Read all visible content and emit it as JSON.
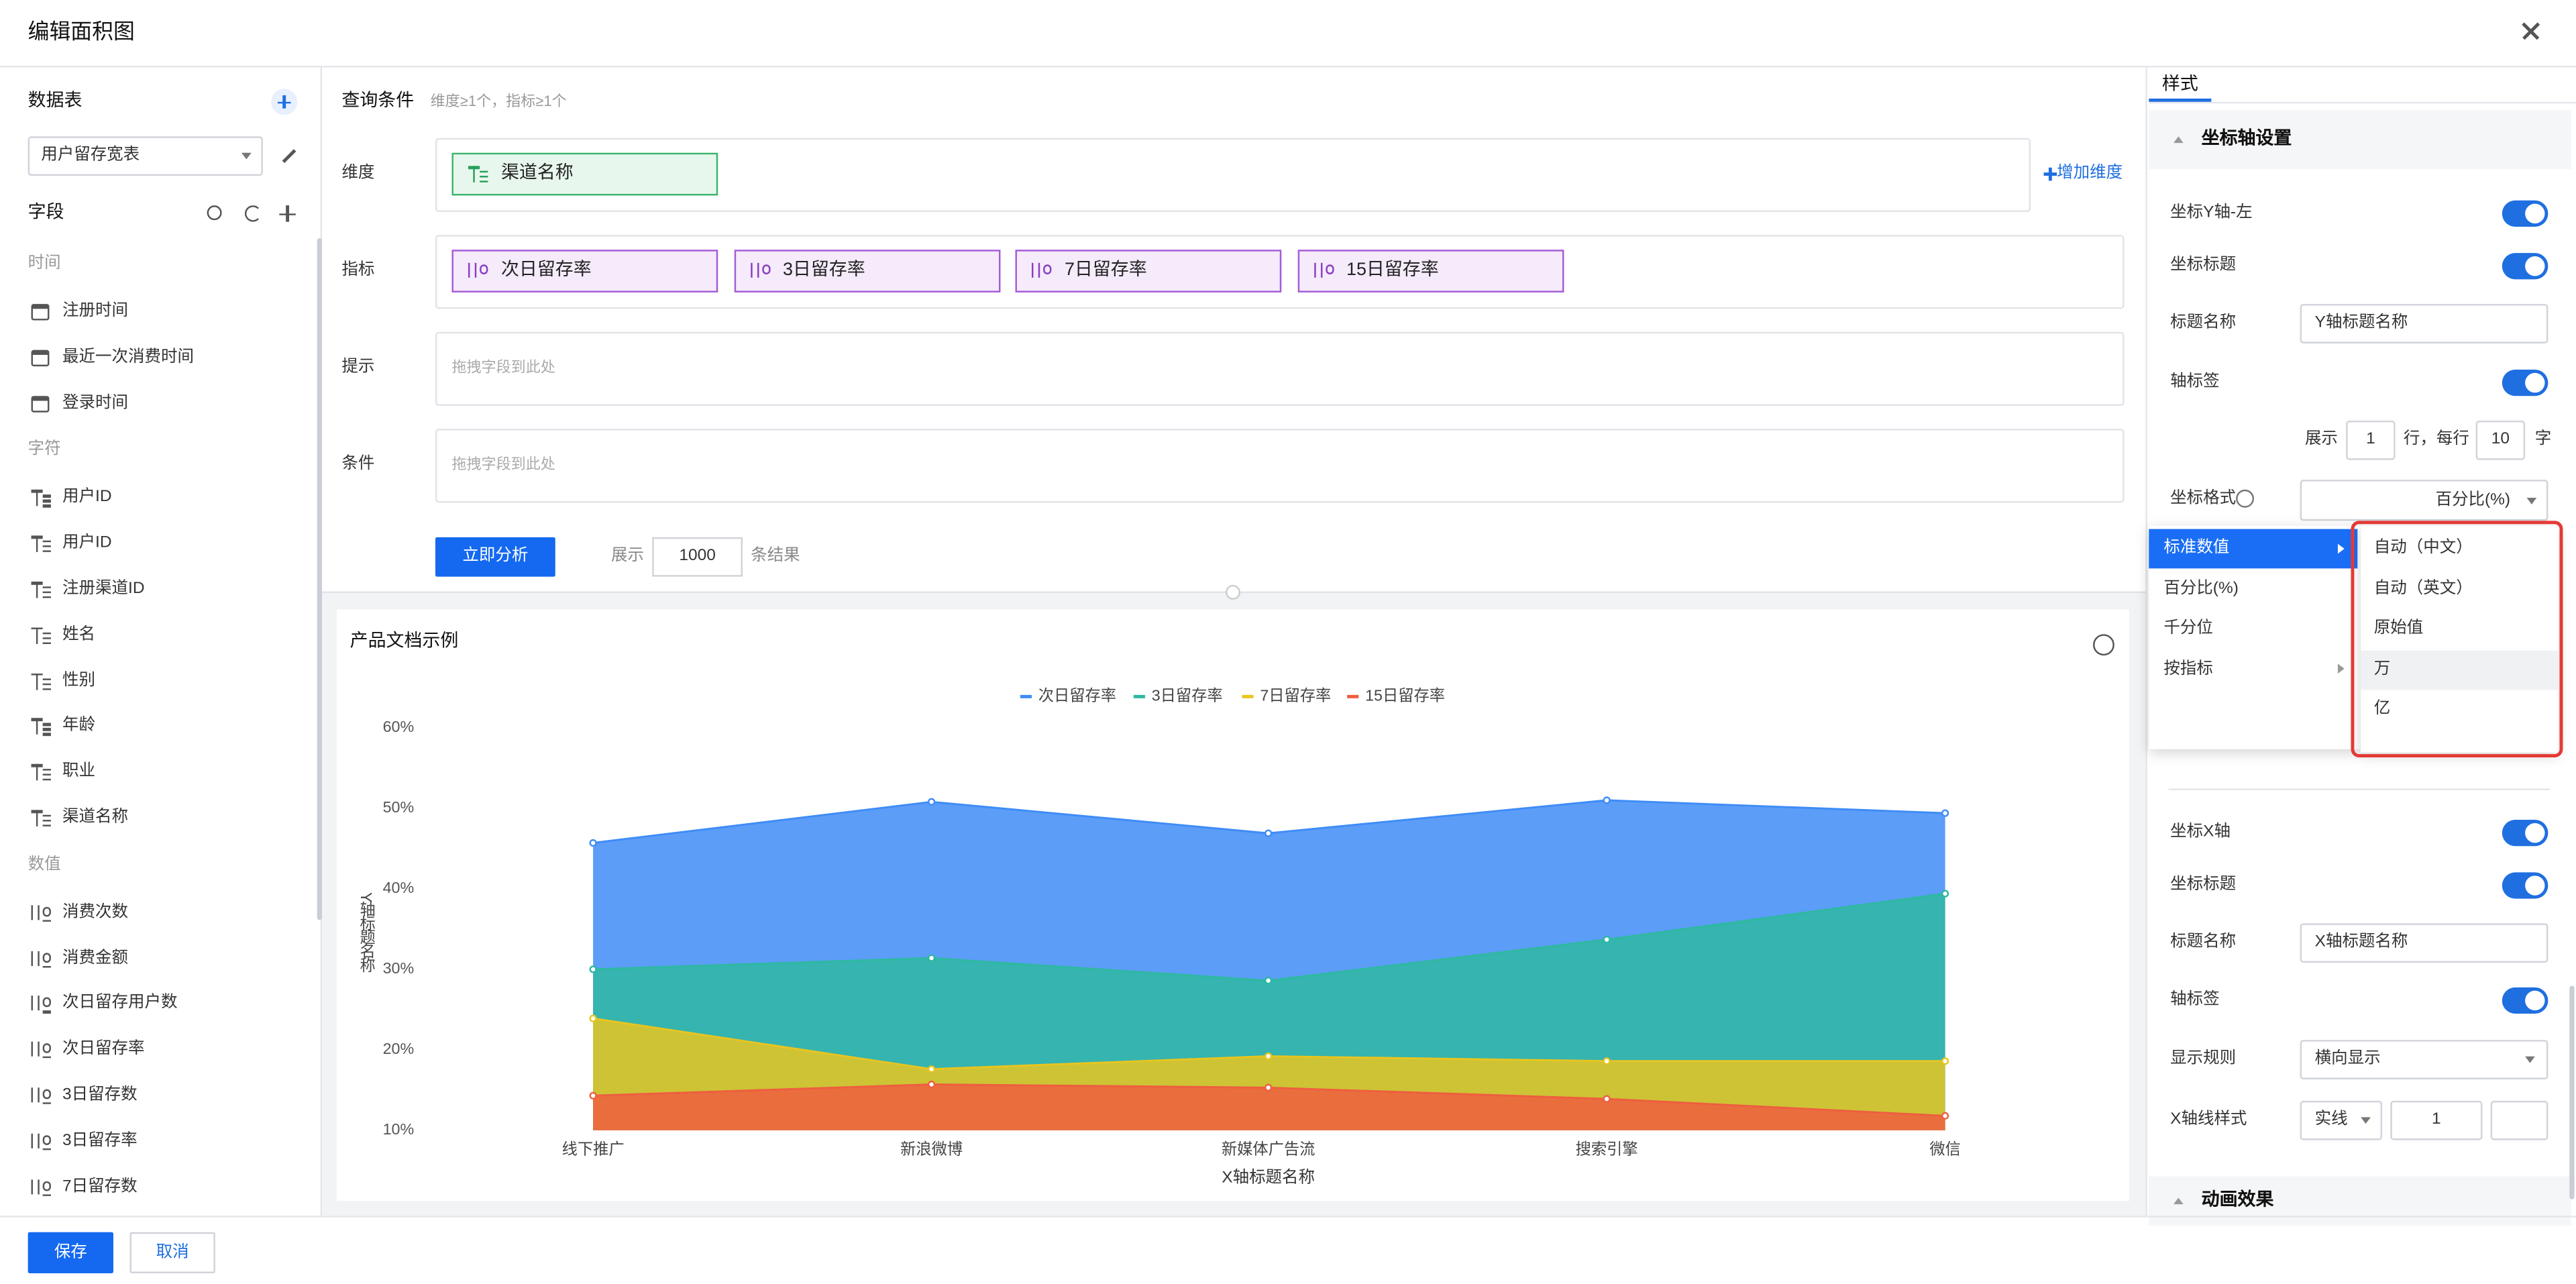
{
  "dialog": {
    "title": "编辑面积图"
  },
  "left_panel": {
    "datatable_label": "数据表",
    "datatable_value": "用户留存宽表",
    "fields_label": "字段",
    "groups": [
      {
        "name": "时间",
        "kind": "time",
        "items": [
          "注册时间",
          "最近一次消费时间",
          "登录时间"
        ]
      },
      {
        "name": "字符",
        "kind": "text",
        "items": [
          "用户ID",
          "用户ID",
          "注册渠道ID",
          "姓名",
          "性别",
          "年龄",
          "职业",
          "渠道名称"
        ]
      },
      {
        "name": "数值",
        "kind": "number",
        "items": [
          "消费次数",
          "消费金额",
          "次日留存用户数",
          "次日留存率",
          "3日留存数",
          "3日留存率",
          "7日留存数"
        ]
      }
    ]
  },
  "query": {
    "title": "查询条件",
    "hint": "维度≥1个，指标≥1个",
    "rows": [
      {
        "label": "维度",
        "chips": [
          "渠道名称"
        ],
        "action": "增加维度"
      },
      {
        "label": "指标",
        "chips": [
          "次日留存率",
          "3日留存率",
          "7日留存率",
          "15日留存率"
        ]
      },
      {
        "label": "提示",
        "placeholder": "拖拽字段到此处"
      },
      {
        "label": "条件",
        "placeholder": "拖拽字段到此处"
      }
    ],
    "analyze_button": "立即分析",
    "show_label": "展示",
    "show_count": "1000",
    "result_label": "条结果"
  },
  "chart": {
    "type": "area",
    "title": "产品文档示例",
    "y_title": "Y轴标题名称",
    "x_title": "X轴标题名称",
    "categories": [
      "线下推广",
      "新浪微博",
      "新媒体广告流",
      "搜索引擎",
      "微信"
    ],
    "series": [
      {
        "name": "次日留存率",
        "color": "#3f8cf7",
        "values": [
          45.7,
          50.8,
          46.9,
          51,
          49.4
        ]
      },
      {
        "name": "3日留存率",
        "color": "#2fb8a2",
        "values": [
          30,
          31.4,
          28.6,
          33.7,
          39.4
        ]
      },
      {
        "name": "7日留存率",
        "color": "#e8c520",
        "values": [
          23.9,
          17.6,
          19.2,
          18.6,
          18.6
        ]
      },
      {
        "name": "15日留存率",
        "color": "#ee5e3f",
        "values": [
          14.3,
          15.7,
          15.3,
          13.9,
          11.8
        ]
      }
    ],
    "ylim": [
      10,
      60
    ],
    "yticks": [
      {
        "value": 10,
        "label": "10%"
      },
      {
        "value": 20,
        "label": "20%"
      },
      {
        "value": 30,
        "label": "30%"
      },
      {
        "value": 40,
        "label": "40%"
      },
      {
        "value": 50,
        "label": "50%"
      },
      {
        "value": 60,
        "label": "60%"
      }
    ],
    "grid": false,
    "legend": "top"
  },
  "style_panel": {
    "tab": "样式",
    "axis_section": "坐标轴设置",
    "y_axis": {
      "label": "坐标Y轴-左",
      "title_toggle": "坐标标题",
      "title_name_label": "标题名称",
      "title_name": "Y轴标题名称",
      "tick_toggle": "轴标签",
      "show_label": "展示",
      "lines": "1",
      "per_line_label": "行，每行",
      "chars": "10",
      "chars_unit": "字",
      "format_label": "坐标格式",
      "format_value": "百分比(%)"
    },
    "format_menu": [
      "标准数值",
      "百分比(%)",
      "千分位",
      "按指标"
    ],
    "format_submenu": [
      "自动（中文）",
      "自动（英文）",
      "原始值",
      "万",
      "亿"
    ],
    "x_axis": {
      "label": "坐标X轴",
      "title_toggle": "坐标标题",
      "title_name_label": "标题名称",
      "title_name": "X轴标题名称",
      "tick_toggle": "轴标签",
      "rule_label": "显示规则",
      "rule_value": "横向显示",
      "line_style_label": "X轴线样式",
      "line_style": "实线",
      "line_width": "1"
    },
    "animation_section": "动画效果"
  },
  "footer": {
    "save": "保存",
    "cancel": "取消"
  }
}
